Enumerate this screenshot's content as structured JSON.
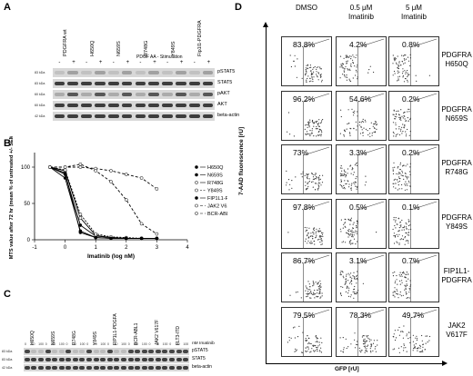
{
  "panel_a": {
    "letter": "A",
    "lanes": [
      "PDGFRA wt",
      "H650Q",
      "N659S",
      "R748G",
      "Y849S",
      "Fip1l1-PDGFRA"
    ],
    "stim_label": "PDGF AA - Stimulation",
    "stim_signs": [
      "-",
      "+",
      "-",
      "+",
      "-",
      "+",
      "-",
      "+",
      "-",
      "+",
      "-",
      "+"
    ],
    "rows": [
      "pSTAT5",
      "STAT5",
      "pAKT",
      "AKT",
      "beta-actin"
    ],
    "kda": [
      "83 kDa",
      "83 kDa",
      "60 kDa",
      "60 kDa",
      "42 kDa"
    ]
  },
  "panel_b": {
    "letter": "B",
    "ylabel": "MTS value after 72 hr (mean % of untreated +/- SEM)",
    "xlabel": "Imatinib (log nM)",
    "yticks": [
      "0",
      "50",
      "100"
    ],
    "xticks": [
      "-1",
      "0",
      "1",
      "2",
      "3",
      "4"
    ],
    "legend": [
      "H650Q",
      "N659S",
      "R748G",
      "Y849S",
      "FIP1L1-PDGFRA",
      "JAK2 V617F",
      "BCR-ABL"
    ]
  },
  "chart_data": {
    "type": "line",
    "xlabel": "Imatinib (log nM)",
    "ylabel": "MTS value after 72 hr (mean % of untreated +/- SEM)",
    "xlim": [
      -1,
      4
    ],
    "ylim": [
      0,
      120
    ],
    "x": [
      -0.5,
      0,
      0.5,
      1,
      1.5,
      2,
      2.5,
      3
    ],
    "series": [
      {
        "name": "H650Q",
        "values": [
          100,
          92,
          10,
          3,
          2,
          2,
          2,
          2
        ]
      },
      {
        "name": "N659S",
        "values": [
          100,
          90,
          20,
          5,
          3,
          2,
          2,
          2
        ]
      },
      {
        "name": "R748G",
        "values": [
          100,
          95,
          30,
          6,
          3,
          2,
          2,
          2
        ]
      },
      {
        "name": "Y849S",
        "values": [
          100,
          96,
          35,
          8,
          4,
          3,
          2,
          2
        ]
      },
      {
        "name": "FIP1L1-PDGFRA",
        "values": [
          100,
          85,
          12,
          3,
          2,
          2,
          2,
          2
        ]
      },
      {
        "name": "JAK2 V617F",
        "values": [
          100,
          100,
          100,
          98,
          95,
          90,
          85,
          70
        ]
      },
      {
        "name": "BCR-ABL",
        "values": [
          100,
          100,
          104,
          95,
          80,
          55,
          22,
          8
        ]
      }
    ]
  },
  "panel_c": {
    "letter": "C",
    "lanes": [
      "H650Q",
      "N659S",
      "R748G",
      "Y849S",
      "FIP1L1-PDGFA",
      "BCR-ABL1",
      "JAK2 V617F",
      "FLT3-ITD"
    ],
    "conc_label": "nM Imatinib",
    "concs": [
      "0",
      "10",
      "100"
    ],
    "rows": [
      "pSTAT5",
      "STAT5",
      "beta-actin"
    ],
    "kda": [
      "83 kDa",
      "83 kDa",
      "42 kDa"
    ]
  },
  "panel_d": {
    "letter": "D",
    "col_heads": [
      "DMSO",
      "0.5 μM\nImatinib",
      "5 μM\nImatinib"
    ],
    "ylabel": "7-AAD fluorescence [rU]",
    "xlabel": "GFP [rU]",
    "rows": [
      {
        "label": "PDGFRA\nH650Q",
        "pcts": [
          "83.8%",
          "4.2%",
          "0.8%"
        ]
      },
      {
        "label": "PDGFRA\nN659S",
        "pcts": [
          "96.2%",
          "54.6%",
          "0.2%"
        ]
      },
      {
        "label": "PDGFRA\nR748G",
        "pcts": [
          "73%",
          "3.3%",
          "0.2%"
        ]
      },
      {
        "label": "PDGFRA\nY849S",
        "pcts": [
          "97.8%",
          "0.5%",
          "0.1%"
        ]
      },
      {
        "label": "FIP1L1-\nPDGFRA",
        "pcts": [
          "86.7%",
          "3.1%",
          "0.7%"
        ]
      },
      {
        "label": "JAK2\nV617F",
        "pcts": [
          "79.5%",
          "78.3%",
          "49.7%"
        ]
      }
    ]
  }
}
